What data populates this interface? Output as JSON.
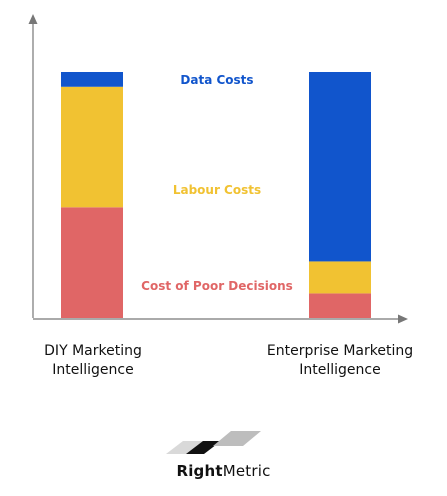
{
  "chart_data": {
    "type": "bar",
    "stacked": true,
    "categories": [
      "DIY Marketing Intelligence",
      "Enterprise Marketing Intelligence"
    ],
    "category_lines": [
      [
        "DIY Marketing",
        "Intelligence"
      ],
      [
        "Enterprise Marketing",
        "Intelligence"
      ]
    ],
    "series": [
      {
        "name": "Cost of Poor Decisions",
        "values": [
          45,
          10
        ],
        "color": "#e06666"
      },
      {
        "name": "Labour Costs",
        "values": [
          49,
          13
        ],
        "color": "#f1c232"
      },
      {
        "name": "Data Costs",
        "values": [
          6,
          77
        ],
        "color": "#1155cc"
      }
    ],
    "ylim": [
      0,
      100
    ],
    "axis_ticks": false,
    "grid": false,
    "legend": "inline-center"
  },
  "logo": {
    "text_bold": "Right",
    "text_regular": "Metric"
  }
}
